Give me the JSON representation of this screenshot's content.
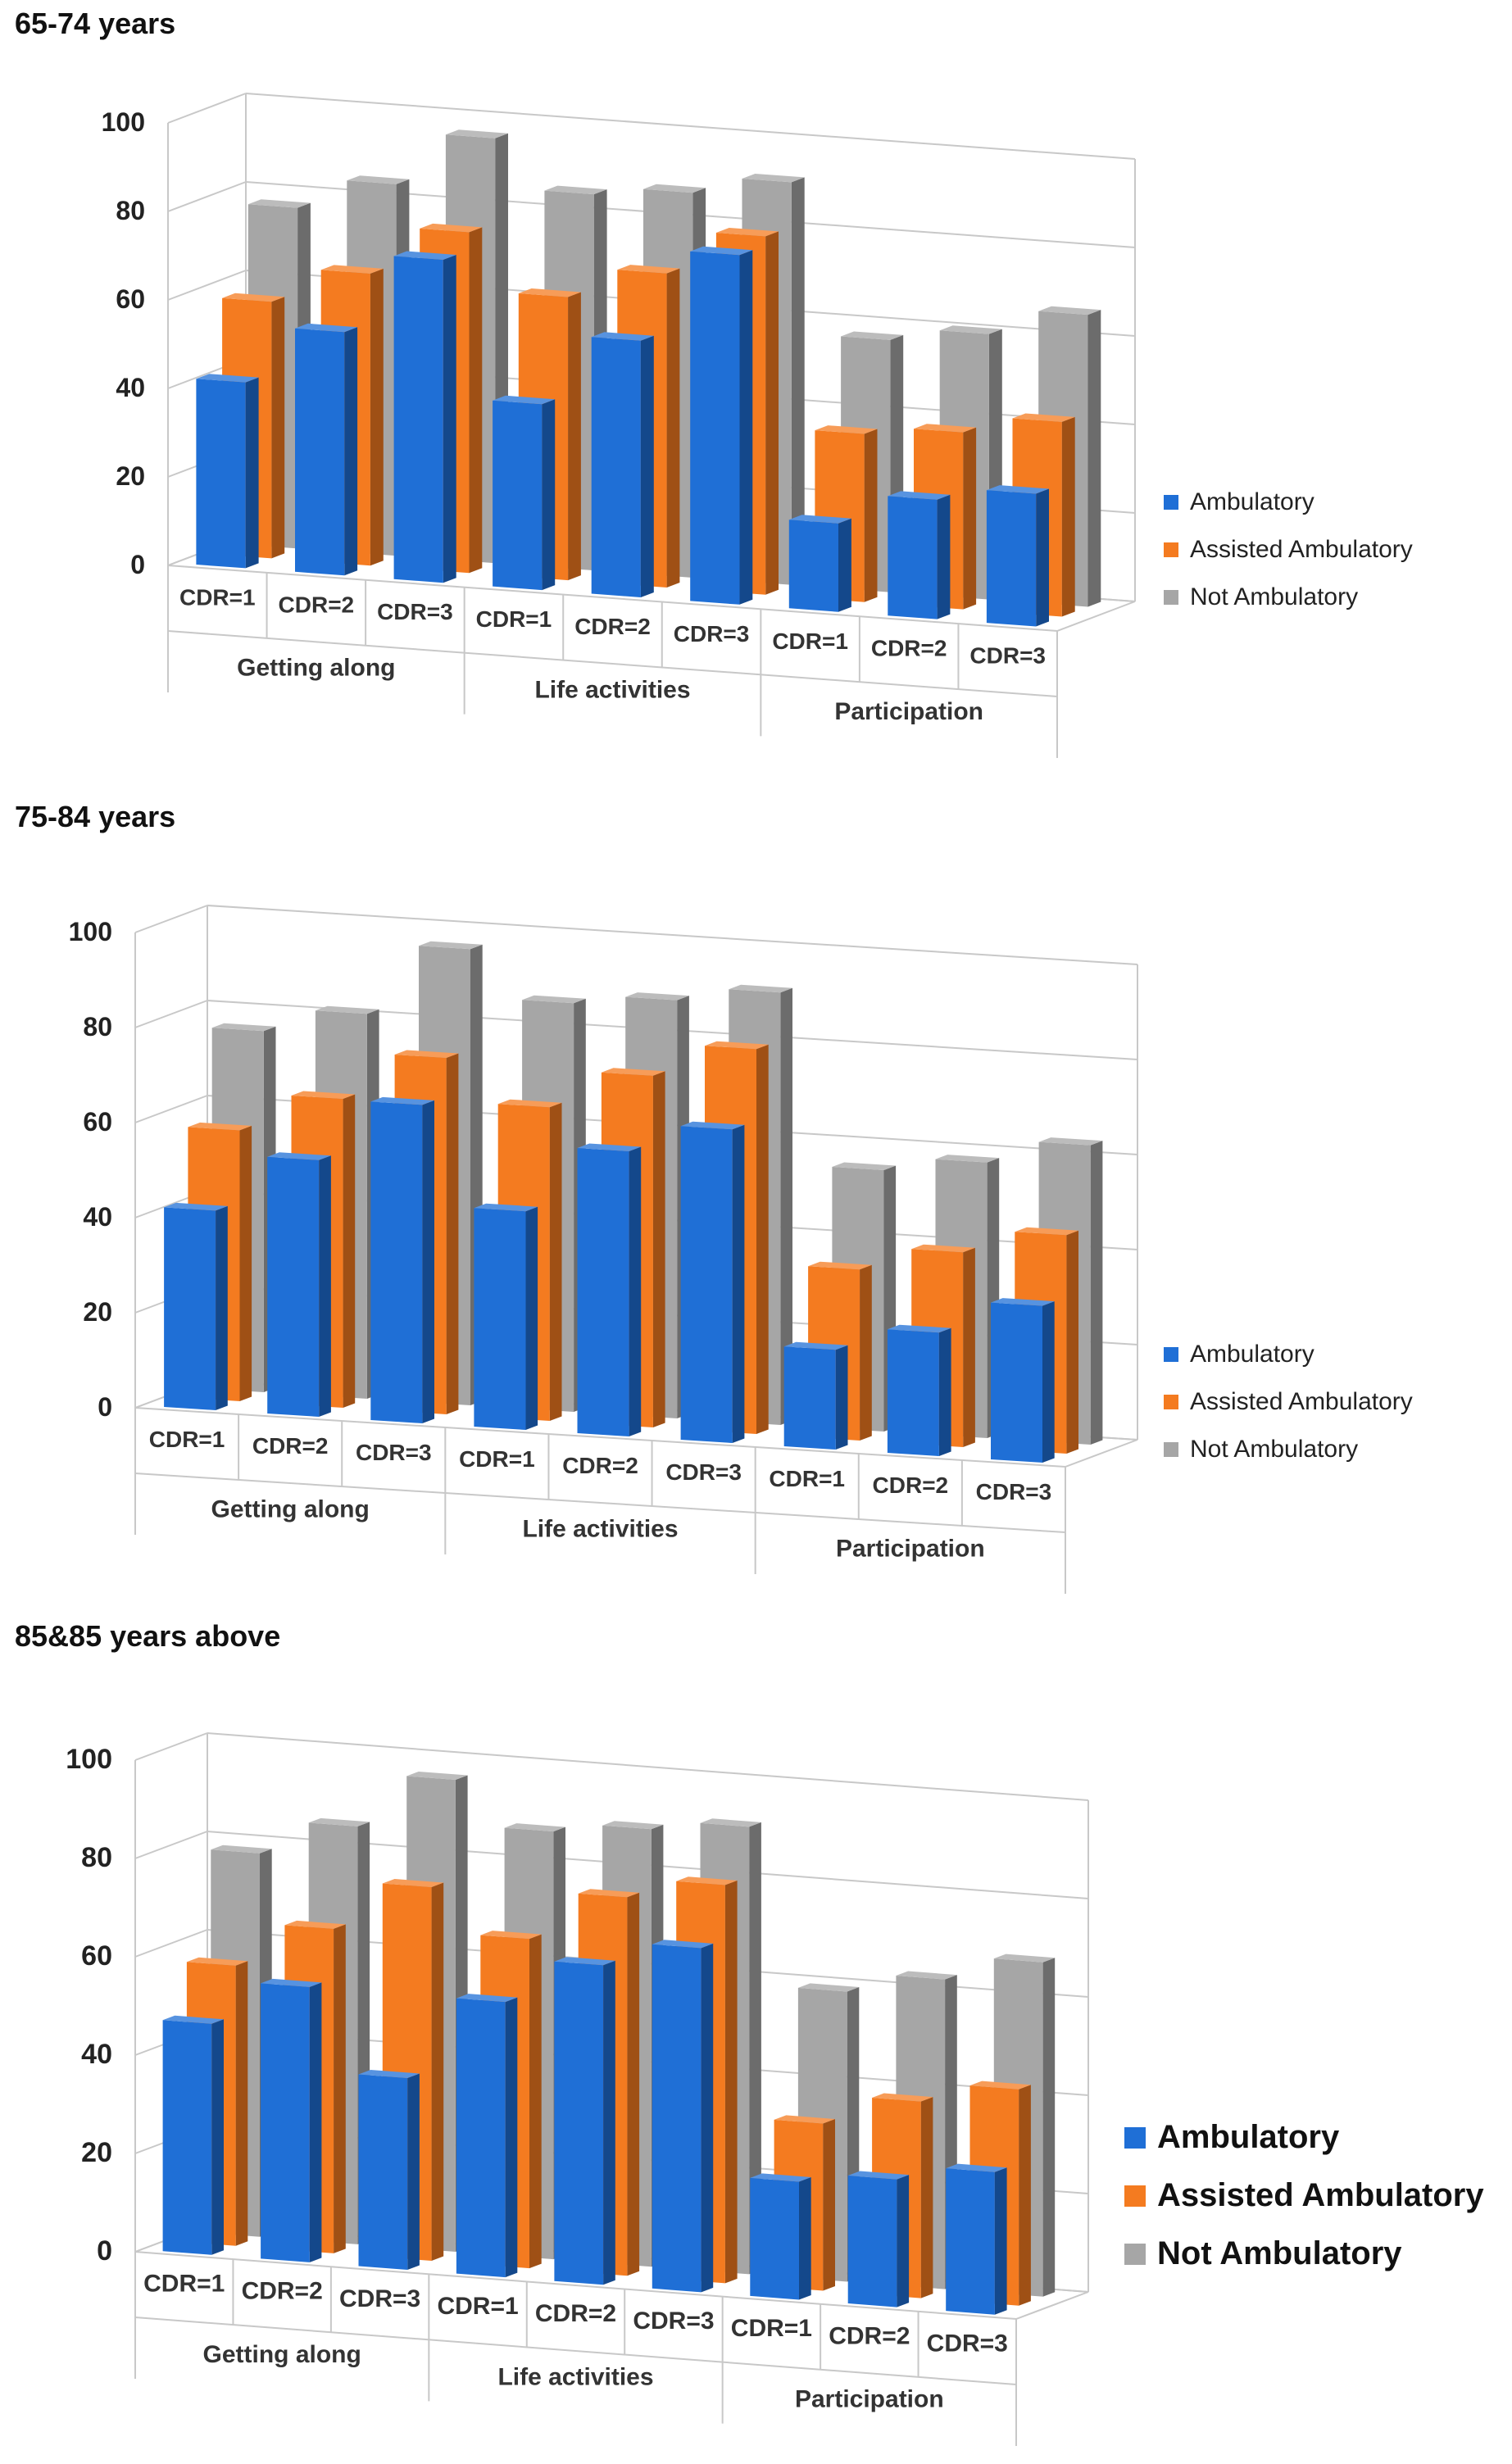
{
  "colors": {
    "ambulatory": "#1f6fd6",
    "assisted": "#f47b20",
    "not_ambulatory": "#a6a6a6",
    "grid": "#c8c8c8"
  },
  "legend": [
    "Ambulatory",
    "Assisted Ambulatory",
    "Not Ambulatory"
  ],
  "chart_data": [
    {
      "type": "bar",
      "title": "65-74 years",
      "groups": [
        "Getting along",
        "Life activities",
        "Participation"
      ],
      "categories": [
        "CDR=1",
        "CDR=2",
        "CDR=3",
        "CDR=1",
        "CDR=2",
        "CDR=3",
        "CDR=1",
        "CDR=2",
        "CDR=3"
      ],
      "series": [
        {
          "name": "Ambulatory",
          "values": [
            42,
            55,
            73,
            42,
            58,
            79,
            20,
            27,
            30
          ]
        },
        {
          "name": "Assisted Ambulatory",
          "values": [
            58,
            66,
            77,
            64,
            71,
            81,
            38,
            40,
            44
          ]
        },
        {
          "name": "Not Ambulatory",
          "values": [
            77,
            84,
            96,
            85,
            87,
            91,
            57,
            60,
            66
          ]
        }
      ],
      "yticks": [
        "0",
        "20",
        "40",
        "60",
        "80",
        "100"
      ],
      "ylim": [
        0,
        100
      ]
    },
    {
      "type": "bar",
      "title": "75-84 years",
      "groups": [
        "Getting along",
        "Life activities",
        "Participation"
      ],
      "categories": [
        "CDR=1",
        "CDR=2",
        "CDR=3",
        "CDR=1",
        "CDR=2",
        "CDR=3",
        "CDR=1",
        "CDR=2",
        "CDR=3"
      ],
      "series": [
        {
          "name": "Ambulatory",
          "values": [
            42,
            54,
            67,
            46,
            60,
            66,
            21,
            26,
            33
          ]
        },
        {
          "name": "Assisted Ambulatory",
          "values": [
            57,
            65,
            75,
            66,
            74,
            81,
            36,
            41,
            46
          ]
        },
        {
          "name": "Not Ambulatory",
          "values": [
            76,
            81,
            96,
            86,
            88,
            91,
            55,
            58,
            63
          ]
        }
      ],
      "yticks": [
        "0",
        "20",
        "40",
        "60",
        "80",
        "100"
      ],
      "ylim": [
        0,
        100
      ]
    },
    {
      "type": "bar",
      "title": "85&85 years above",
      "groups": [
        "Getting along",
        "Life activities",
        "Participation"
      ],
      "categories": [
        "CDR=1",
        "CDR=2",
        "CDR=3",
        "CDR=1",
        "CDR=2",
        "CDR=3",
        "CDR=1",
        "CDR=2",
        "CDR=3"
      ],
      "series": [
        {
          "name": "Ambulatory",
          "values": [
            47,
            56,
            39,
            56,
            65,
            70,
            24,
            26,
            29
          ]
        },
        {
          "name": "Assisted Ambulatory",
          "values": [
            57,
            66,
            76,
            67,
            77,
            81,
            34,
            40,
            44
          ]
        },
        {
          "name": "Not Ambulatory",
          "values": [
            78,
            85,
            96,
            87,
            89,
            91,
            59,
            63,
            68
          ]
        }
      ],
      "yticks": [
        "0",
        "20",
        "40",
        "60",
        "80",
        "100"
      ],
      "ylim": [
        0,
        100
      ]
    }
  ]
}
